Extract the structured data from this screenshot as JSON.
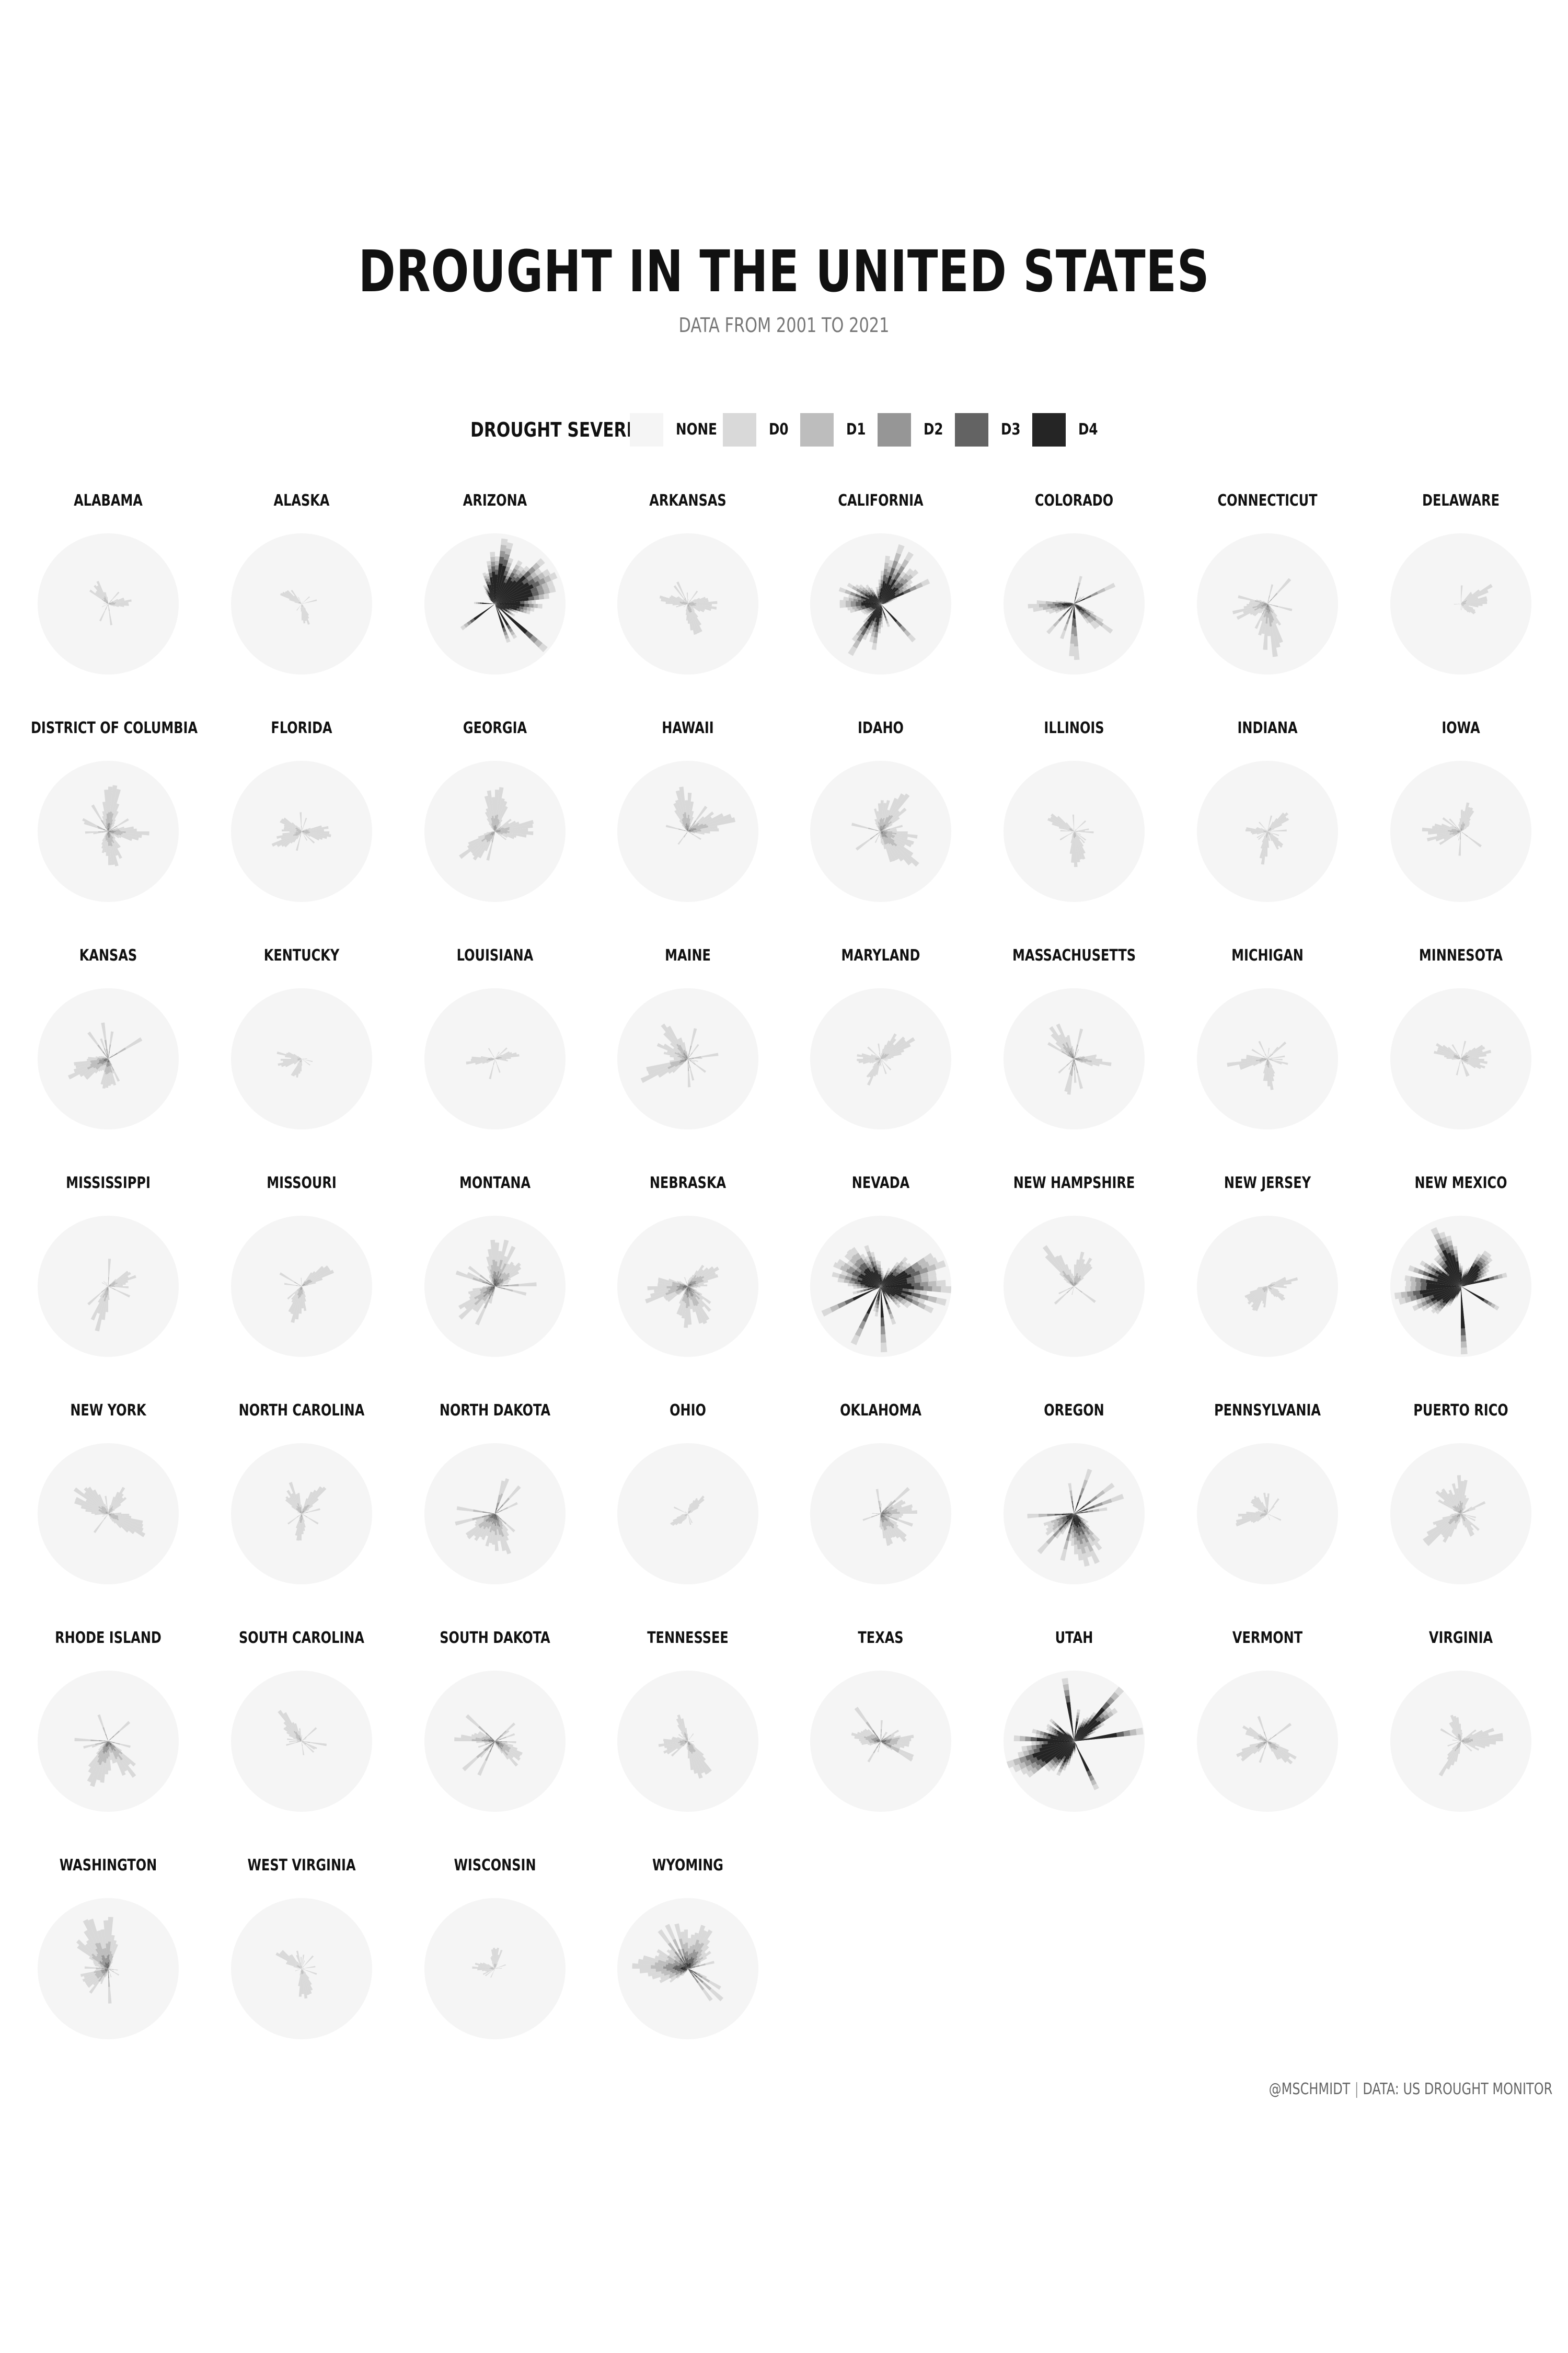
{
  "chart_data": {
    "type": "polar-area",
    "title": "DROUGHT IN THE UNITED STATES",
    "subtitle": "DATA FROM 2001 TO 2021",
    "legend": {
      "title": "DROUGHT SEVERETY",
      "levels": [
        {
          "label": "NONE",
          "color": "#f5f5f5"
        },
        {
          "label": "D0",
          "color": "#d9d9d9"
        },
        {
          "label": "D1",
          "color": "#bdbdbd"
        },
        {
          "label": "D2",
          "color": "#969696"
        },
        {
          "label": "D3",
          "color": "#636363"
        },
        {
          "label": "D4",
          "color": "#252525"
        }
      ]
    },
    "states": [
      {
        "name": "ALABAMA",
        "intensity": 0.35
      },
      {
        "name": "ALASKA",
        "intensity": 0.15
      },
      {
        "name": "ARIZONA",
        "intensity": 0.95
      },
      {
        "name": "ARKANSAS",
        "intensity": 0.3
      },
      {
        "name": "CALIFORNIA",
        "intensity": 0.9
      },
      {
        "name": "COLORADO",
        "intensity": 0.8
      },
      {
        "name": "CONNECTICUT",
        "intensity": 0.45
      },
      {
        "name": "DELAWARE",
        "intensity": 0.2
      },
      {
        "name": "DISTRICT OF COLUMBIA",
        "intensity": 0.45
      },
      {
        "name": "FLORIDA",
        "intensity": 0.3
      },
      {
        "name": "GEORGIA",
        "intensity": 0.4
      },
      {
        "name": "HAWAII",
        "intensity": 0.45
      },
      {
        "name": "IDAHO",
        "intensity": 0.45
      },
      {
        "name": "ILLINOIS",
        "intensity": 0.2
      },
      {
        "name": "INDIANA",
        "intensity": 0.2
      },
      {
        "name": "IOWA",
        "intensity": 0.35
      },
      {
        "name": "KANSAS",
        "intensity": 0.55
      },
      {
        "name": "KENTUCKY",
        "intensity": 0.2
      },
      {
        "name": "LOUISIANA",
        "intensity": 0.3
      },
      {
        "name": "MAINE",
        "intensity": 0.45
      },
      {
        "name": "MARYLAND",
        "intensity": 0.25
      },
      {
        "name": "MASSACHUSETTS",
        "intensity": 0.5
      },
      {
        "name": "MICHIGAN",
        "intensity": 0.3
      },
      {
        "name": "MINNESOTA",
        "intensity": 0.3
      },
      {
        "name": "MISSISSIPPI",
        "intensity": 0.35
      },
      {
        "name": "MISSOURI",
        "intensity": 0.35
      },
      {
        "name": "MONTANA",
        "intensity": 0.6
      },
      {
        "name": "NEBRASKA",
        "intensity": 0.55
      },
      {
        "name": "NEVADA",
        "intensity": 0.9
      },
      {
        "name": "NEW HAMPSHIRE",
        "intensity": 0.4
      },
      {
        "name": "NEW JERSEY",
        "intensity": 0.25
      },
      {
        "name": "NEW MEXICO",
        "intensity": 0.95
      },
      {
        "name": "NEW YORK",
        "intensity": 0.3
      },
      {
        "name": "NORTH CAROLINA",
        "intensity": 0.35
      },
      {
        "name": "NORTH DAKOTA",
        "intensity": 0.6
      },
      {
        "name": "OHIO",
        "intensity": 0.2
      },
      {
        "name": "OKLAHOMA",
        "intensity": 0.55
      },
      {
        "name": "OREGON",
        "intensity": 0.8
      },
      {
        "name": "PENNSYLVANIA",
        "intensity": 0.25
      },
      {
        "name": "PUERTO RICO",
        "intensity": 0.35
      },
      {
        "name": "RHODE ISLAND",
        "intensity": 0.55
      },
      {
        "name": "SOUTH CAROLINA",
        "intensity": 0.35
      },
      {
        "name": "SOUTH DAKOTA",
        "intensity": 0.6
      },
      {
        "name": "TENNESSEE",
        "intensity": 0.35
      },
      {
        "name": "TEXAS",
        "intensity": 0.6
      },
      {
        "name": "UTAH",
        "intensity": 0.95
      },
      {
        "name": "VERMONT",
        "intensity": 0.4
      },
      {
        "name": "VIRGINIA",
        "intensity": 0.3
      },
      {
        "name": "WASHINGTON",
        "intensity": 0.55
      },
      {
        "name": "WEST VIRGINIA",
        "intensity": 0.2
      },
      {
        "name": "WISCONSIN",
        "intensity": 0.25
      },
      {
        "name": "WYOMING",
        "intensity": 0.7
      }
    ]
  },
  "footer": {
    "handle": "@MSCHMIDT",
    "source": "DATA: US DROUGHT MONITOR"
  }
}
